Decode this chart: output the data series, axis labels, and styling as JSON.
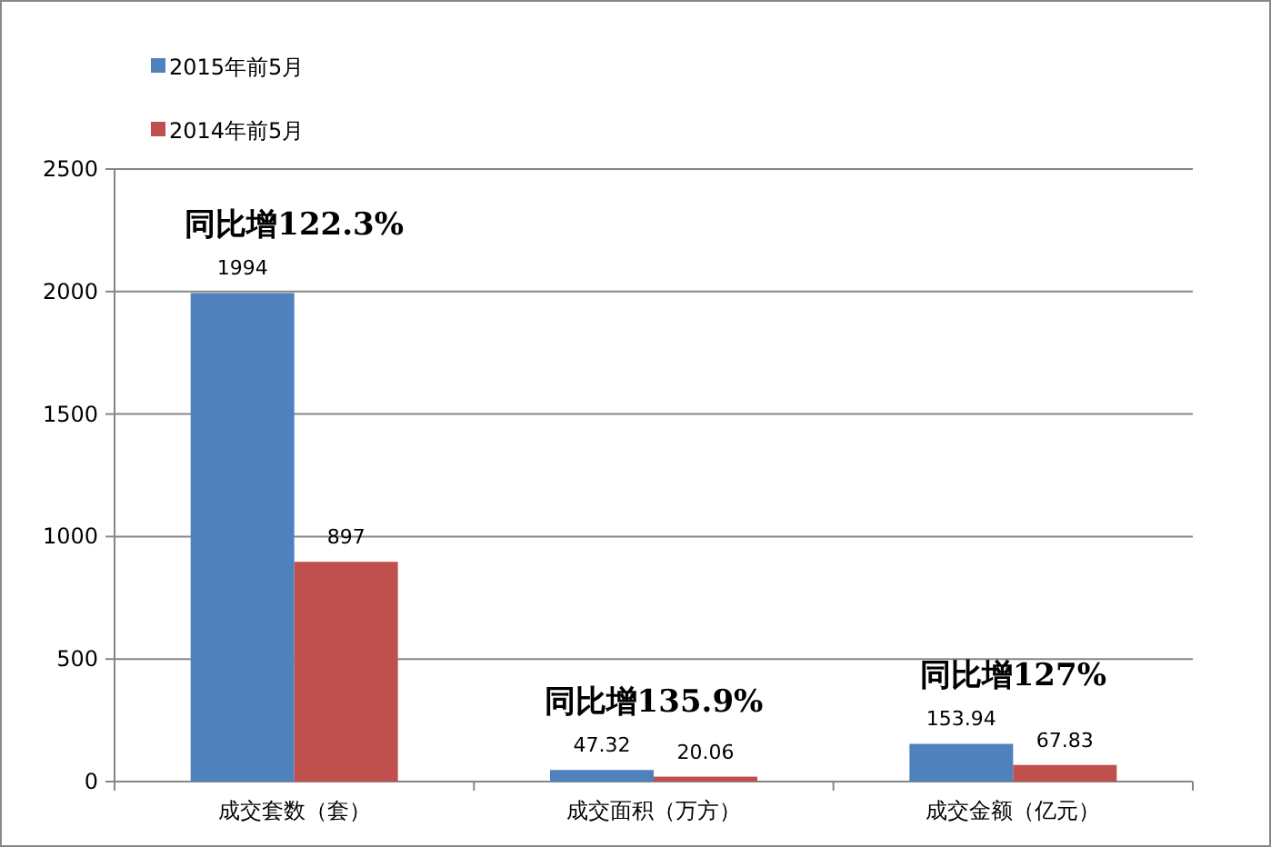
{
  "chart_data": {
    "type": "bar",
    "categories": [
      "成交套数（套）",
      "成交面积（万方）",
      "成交金额（亿元）"
    ],
    "series": [
      {
        "name": "2015年前5月",
        "color": "#4f81bd",
        "values": [
          1994,
          47.32,
          153.94
        ]
      },
      {
        "name": "2014年前5月",
        "color": "#c0504d",
        "values": [
          897,
          20.06,
          67.83
        ]
      }
    ],
    "ylim": [
      0,
      2500
    ],
    "yticks": [
      0,
      500,
      1000,
      1500,
      2000,
      2500
    ],
    "grid": "y",
    "legend": "top left",
    "data_labels": true,
    "annotations": [
      "同比增122.3%",
      "同比增135.9%",
      "同比增127%"
    ]
  }
}
